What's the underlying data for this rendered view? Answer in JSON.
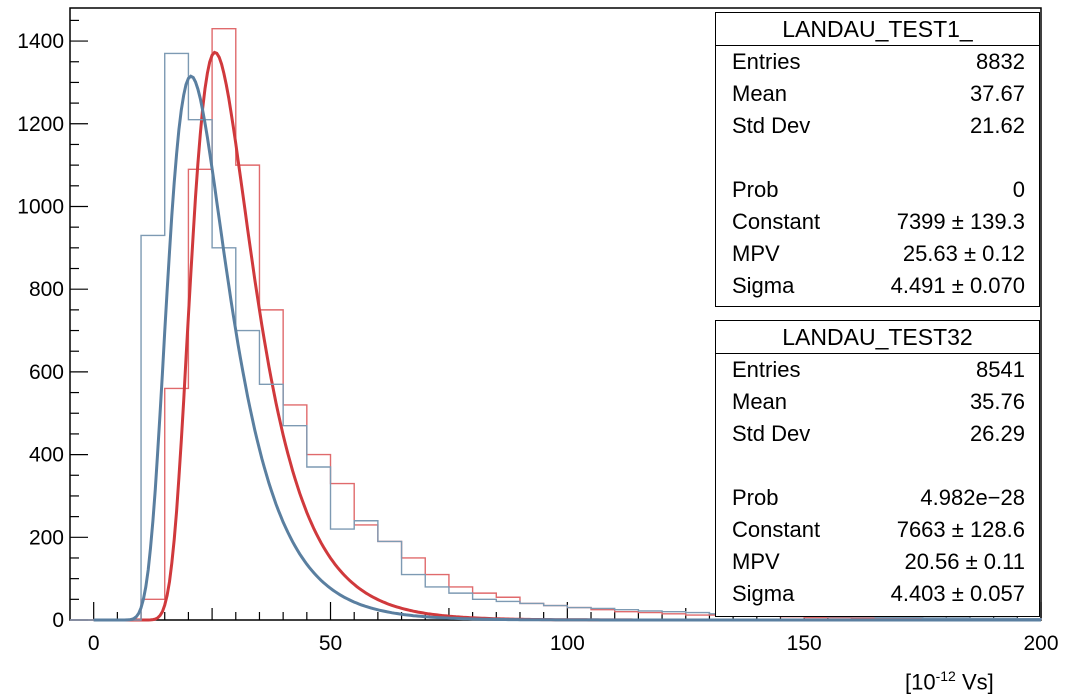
{
  "chart_data": {
    "type": "histogram",
    "xlim": [
      -5,
      200
    ],
    "ylim": [
      0,
      1480
    ],
    "x_ticks": [
      0,
      50,
      100,
      150,
      200
    ],
    "y_ticks": [
      0,
      200,
      400,
      600,
      800,
      1000,
      1200,
      1400
    ],
    "bin_width": 5,
    "unit_label": {
      "prefix": "[10",
      "exponent": "-12",
      "suffix": " Vs]"
    },
    "series": [
      {
        "name": "LANDAU_TEST1_",
        "color": "#d0393c",
        "hist_color": "#e06a6c",
        "bins_x": [
          0,
          5,
          10,
          15,
          20,
          25,
          30,
          35,
          40,
          45,
          50,
          55,
          60,
          65,
          70,
          75,
          80,
          85,
          90,
          95,
          100,
          105,
          110,
          115,
          120,
          125,
          130,
          135,
          140,
          145,
          150,
          155,
          160,
          165,
          170,
          175,
          180,
          185,
          190,
          195
        ],
        "bins_y": [
          0,
          0,
          50,
          560,
          1090,
          1430,
          1100,
          750,
          520,
          400,
          330,
          230,
          190,
          150,
          110,
          80,
          65,
          55,
          40,
          35,
          30,
          25,
          20,
          18,
          15,
          12,
          12,
          10,
          10,
          8,
          6,
          6,
          5,
          5,
          4,
          4,
          3,
          3,
          3,
          3
        ],
        "fit": {
          "mpv": 25.63,
          "sigma": 4.491,
          "constant": 7399
        }
      },
      {
        "name": "LANDAU_TEST32",
        "color": "#5a7fa0",
        "hist_color": "#7d9ab3",
        "bins_x": [
          0,
          5,
          10,
          15,
          20,
          25,
          30,
          35,
          40,
          45,
          50,
          55,
          60,
          65,
          70,
          75,
          80,
          85,
          90,
          95,
          100,
          105,
          110,
          115,
          120,
          125,
          130,
          135,
          140,
          145,
          150,
          155,
          160,
          165,
          170,
          175,
          180,
          185,
          190,
          195
        ],
        "bins_y": [
          0,
          0,
          930,
          1370,
          1210,
          900,
          700,
          570,
          470,
          370,
          220,
          240,
          190,
          110,
          80,
          65,
          50,
          45,
          40,
          35,
          30,
          28,
          25,
          22,
          20,
          18,
          15,
          14,
          12,
          10,
          10,
          8,
          8,
          6,
          6,
          5,
          5,
          4,
          4,
          3
        ],
        "fit": {
          "mpv": 20.56,
          "sigma": 4.403,
          "constant": 7663
        }
      }
    ],
    "stats_boxes": [
      {
        "title": "LANDAU_TEST1_",
        "rows": [
          {
            "label": "Entries",
            "value": "8832"
          },
          {
            "label": "Mean",
            "value": "37.67"
          },
          {
            "label": "Std Dev",
            "value": "21.62"
          },
          null,
          {
            "label": "Prob",
            "value": "0"
          },
          {
            "label": "Constant",
            "value": "7399 ± 139.3"
          },
          {
            "label": "MPV",
            "value": "25.63 ± 0.12"
          },
          {
            "label": "Sigma",
            "value": "4.491 ± 0.070"
          }
        ]
      },
      {
        "title": "LANDAU_TEST32",
        "rows": [
          {
            "label": "Entries",
            "value": "8541"
          },
          {
            "label": "Mean",
            "value": "35.76"
          },
          {
            "label": "Std Dev",
            "value": "26.29"
          },
          null,
          {
            "label": "Prob",
            "value": "4.982e−28"
          },
          {
            "label": "Constant",
            "value": "7663 ± 128.6"
          },
          {
            "label": "MPV",
            "value": "20.56 ± 0.11"
          },
          {
            "label": "Sigma",
            "value": "4.403 ± 0.057"
          }
        ]
      }
    ]
  }
}
